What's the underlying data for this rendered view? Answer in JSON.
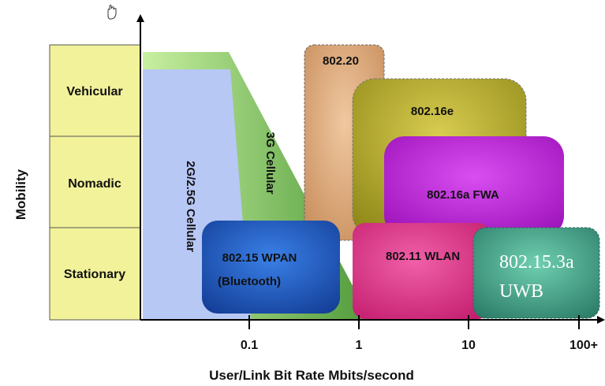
{
  "y_axis": {
    "label": "Mobility",
    "levels": [
      "Vehicular",
      "Nomadic",
      "Stationary"
    ]
  },
  "x_axis": {
    "label": "User/Link Bit Rate Mbits/second",
    "ticks": [
      "0.1",
      "1",
      "10",
      "100+"
    ]
  },
  "regions": {
    "cellular_2g": "2G/2.5G Cellular",
    "cellular_3g": "3G Cellular",
    "ieee_802_20": "802.20",
    "ieee_802_16e": "802.16e",
    "ieee_802_16a": "802.16a FWA",
    "ieee_802_11": "802.11 WLAN",
    "wpan_line1": "802.15 WPAN",
    "wpan_line2": "(Bluetooth)",
    "uwb_line1": "802.15.3a",
    "uwb_line2": "UWB"
  },
  "icons": {
    "top": "hand-cursor-icon"
  },
  "colors": {
    "mobility_panel": "#f2f29a",
    "cellular_2g": "#b7c8f5",
    "cellular_3g": "#6ab04a",
    "ieee_802_20": "#d9a274",
    "ieee_802_16e": "#b3a82a",
    "ieee_802_16a": "#b71ed1",
    "ieee_802_11": "#e0257e",
    "wpan": "#1e5cc4",
    "uwb": "#3f9f86"
  }
}
